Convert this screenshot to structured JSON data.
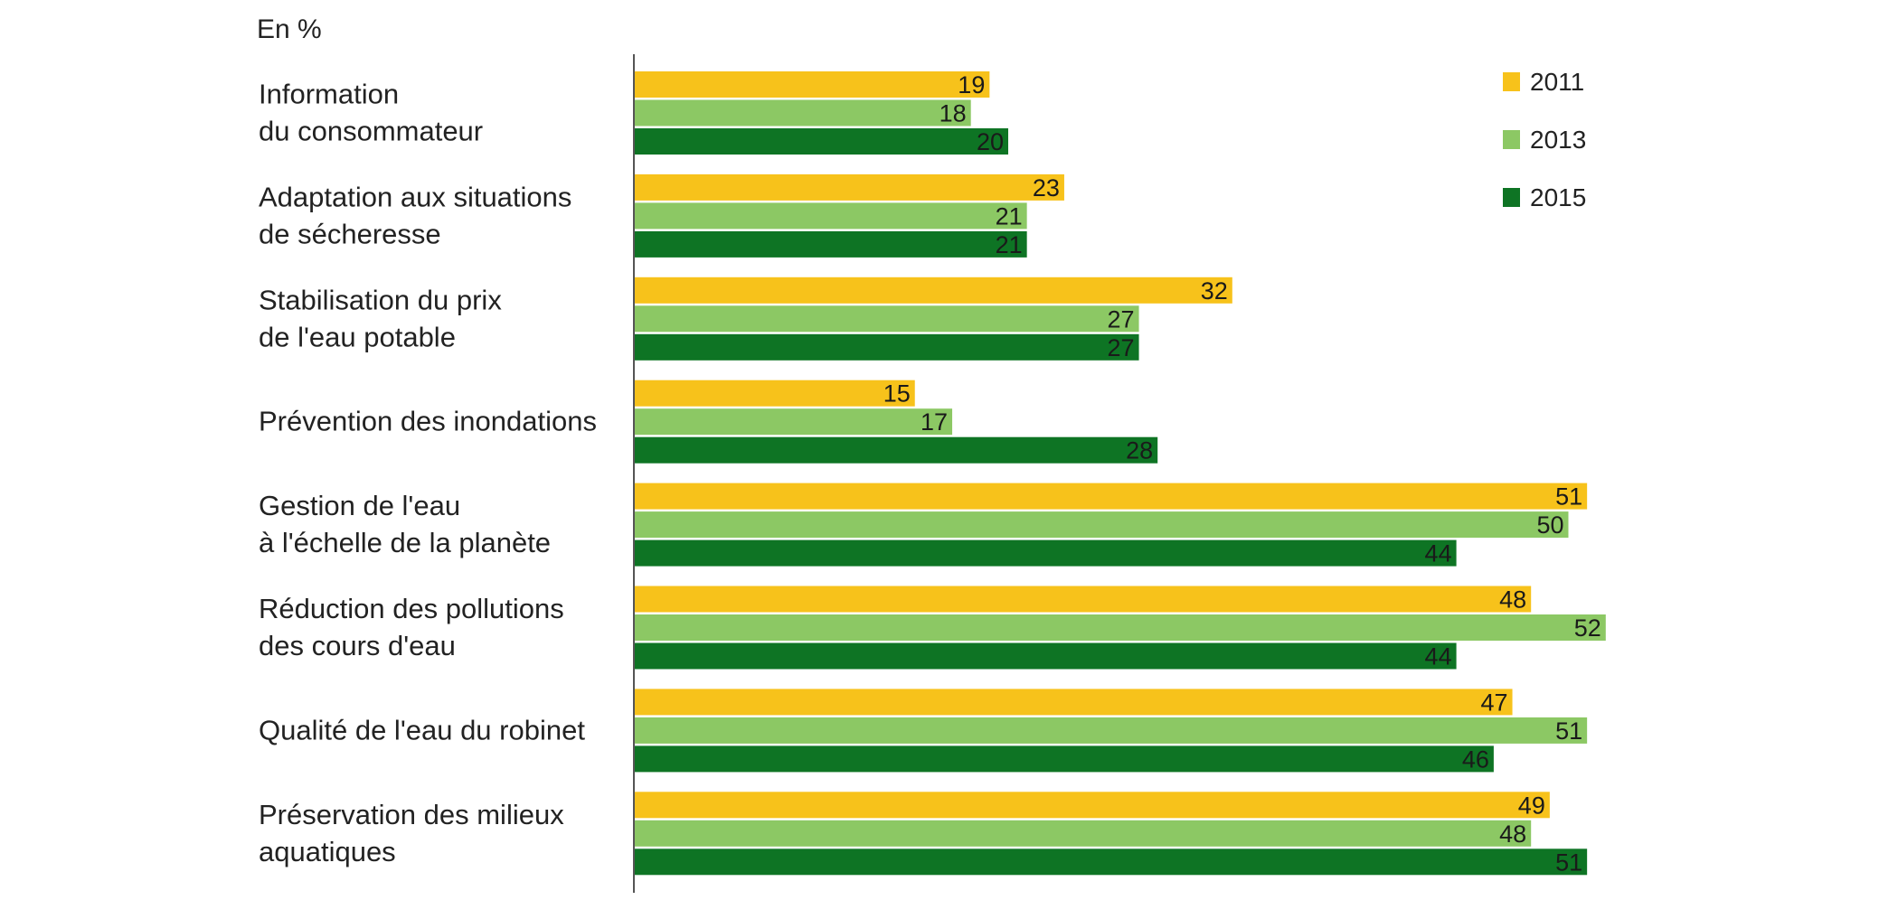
{
  "chart_data": {
    "type": "bar",
    "orientation": "horizontal",
    "unit_label": "En %",
    "categories": [
      "Information\ndu consommateur",
      "Adaptation aux situations\nde sécheresse",
      "Stabilisation du prix\nde l'eau potable",
      "Prévention des inondations",
      "Gestion de l'eau\nà l'échelle de la planète",
      "Réduction des pollutions\ndes cours d'eau",
      "Qualité de l'eau du robinet",
      "Préservation des milieux\naquatiques"
    ],
    "series": [
      {
        "name": "2011",
        "color": "#f7c21b",
        "label_color": "#1a1a1a",
        "values": [
          19,
          23,
          32,
          15,
          51,
          48,
          47,
          49
        ]
      },
      {
        "name": "2013",
        "color": "#8cc864",
        "label_color": "#1a1a1a",
        "values": [
          18,
          21,
          27,
          17,
          50,
          52,
          51,
          48
        ]
      },
      {
        "name": "2015",
        "color": "#0e7424",
        "label_color": "#ffffff",
        "values": [
          20,
          21,
          27,
          28,
          44,
          44,
          46,
          51
        ]
      }
    ],
    "xlim": [
      0,
      52
    ],
    "grid": false,
    "legend_position": "top-right",
    "axis_color": "#555555"
  }
}
